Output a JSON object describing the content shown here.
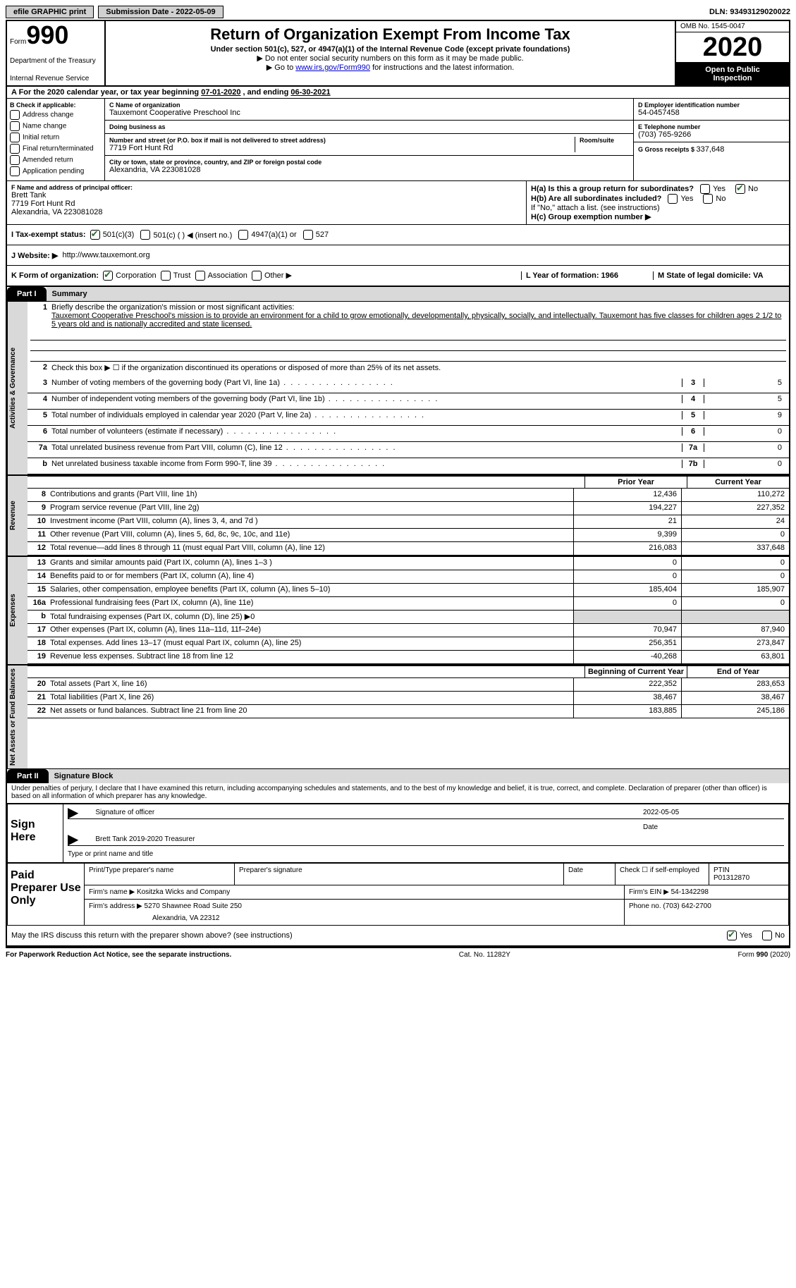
{
  "top": {
    "efile": "efile GRAPHIC print",
    "submission_label": "Submission Date - ",
    "submission_date": "2022-05-09",
    "dln_label": "DLN: ",
    "dln": "93493129020022"
  },
  "header": {
    "form_word": "Form",
    "form_number": "990",
    "title": "Return of Organization Exempt From Income Tax",
    "subtitle": "Under section 501(c), 527, or 4947(a)(1) of the Internal Revenue Code (except private foundations)",
    "instr1": "Do not enter social security numbers on this form as it may be made public.",
    "instr2_pre": "Go to ",
    "instr2_link": "www.irs.gov/Form990",
    "instr2_post": " for instructions and the latest information.",
    "dept1": "Department of the Treasury",
    "dept2": "Internal Revenue Service",
    "omb": "OMB No. 1545-0047",
    "year": "2020",
    "inspect1": "Open to Public",
    "inspect2": "Inspection"
  },
  "lineA": {
    "pre": "A For the 2020 calendar year, or tax year beginning ",
    "begin": "07-01-2020",
    "mid": " , and ending ",
    "end": "06-30-2021"
  },
  "secB": {
    "hdr": "B Check if applicable:",
    "opts": [
      "Address change",
      "Name change",
      "Initial return",
      "Final return/terminated",
      "Amended return",
      "Application pending"
    ]
  },
  "secC": {
    "name_hdr": "C Name of organization",
    "name": "Tauxemont Cooperative Preschool Inc",
    "dba_hdr": "Doing business as",
    "addr_hdr": "Number and street (or P.O. box if mail is not delivered to street address)",
    "room_hdr": "Room/suite",
    "addr": "7719 Fort Hunt Rd",
    "city_hdr": "City or town, state or province, country, and ZIP or foreign postal code",
    "city": "Alexandria, VA  223081028"
  },
  "secDE": {
    "d_hdr": "D Employer identification number",
    "ein": "54-0457458",
    "e_hdr": "E Telephone number",
    "phone": "(703) 765-9266",
    "g_hdr": "G Gross receipts $ ",
    "g_val": "337,648"
  },
  "secF": {
    "hdr": "F Name and address of principal officer:",
    "name": "Brett Tank",
    "addr1": "7719 Fort Hunt Rd",
    "addr2": "Alexandria, VA  223081028"
  },
  "secH": {
    "a_label": "H(a)  Is this a group return for subordinates?",
    "b_label": "H(b)  Are all subordinates included?",
    "b_note": "If \"No,\" attach a list. (see instructions)",
    "c_label": "H(c)  Group exemption number ▶",
    "yes": "Yes",
    "no": "No"
  },
  "secI": {
    "label": "I  Tax-exempt status:",
    "o1": "501(c)(3)",
    "o2": "501(c) (   ) ◀ (insert no.)",
    "o3": "4947(a)(1) or",
    "o4": "527"
  },
  "secJ": {
    "label": "J  Website: ▶",
    "url": "http://www.tauxemont.org"
  },
  "secK": {
    "label": "K Form of organization:",
    "o1": "Corporation",
    "o2": "Trust",
    "o3": "Association",
    "o4": "Other ▶"
  },
  "secLM": {
    "l": "L Year of formation: 1966",
    "m": "M State of legal domicile: VA"
  },
  "part1": {
    "tab": "Part I",
    "title": "Summary",
    "q1_label": "Briefly describe the organization's mission or most significant activities:",
    "mission": "Tauxemont Cooperative Preschool's mission is to provide an environment for a child to grow emotionally, developmentally, physically, socially, and intellectually. Tauxemont has five classes for children ages 2 1/2 to 5 years old and is nationally accredited and state licensed.",
    "q2": "Check this box ▶ ☐  if the organization discontinued its operations or disposed of more than 25% of its net assets.",
    "rows": [
      {
        "n": "3",
        "t": "Number of voting members of the governing body (Part VI, line 1a)",
        "box": "3",
        "v": "5"
      },
      {
        "n": "4",
        "t": "Number of independent voting members of the governing body (Part VI, line 1b)",
        "box": "4",
        "v": "5"
      },
      {
        "n": "5",
        "t": "Total number of individuals employed in calendar year 2020 (Part V, line 2a)",
        "box": "5",
        "v": "9"
      },
      {
        "n": "6",
        "t": "Total number of volunteers (estimate if necessary)",
        "box": "6",
        "v": "0"
      },
      {
        "n": "7a",
        "t": "Total unrelated business revenue from Part VIII, column (C), line 12",
        "box": "7a",
        "v": "0"
      },
      {
        "n": "b",
        "t": "Net unrelated business taxable income from Form 990-T, line 39",
        "box": "7b",
        "v": "0"
      }
    ],
    "col_prior": "Prior Year",
    "col_curr": "Current Year",
    "revenue_rows": [
      {
        "n": "8",
        "t": "Contributions and grants (Part VIII, line 1h)",
        "p": "12,436",
        "c": "110,272"
      },
      {
        "n": "9",
        "t": "Program service revenue (Part VIII, line 2g)",
        "p": "194,227",
        "c": "227,352"
      },
      {
        "n": "10",
        "t": "Investment income (Part VIII, column (A), lines 3, 4, and 7d )",
        "p": "21",
        "c": "24"
      },
      {
        "n": "11",
        "t": "Other revenue (Part VIII, column (A), lines 5, 6d, 8c, 9c, 10c, and 11e)",
        "p": "9,399",
        "c": "0"
      },
      {
        "n": "12",
        "t": "Total revenue—add lines 8 through 11 (must equal Part VIII, column (A), line 12)",
        "p": "216,083",
        "c": "337,648"
      }
    ],
    "expense_rows": [
      {
        "n": "13",
        "t": "Grants and similar amounts paid (Part IX, column (A), lines 1–3 )",
        "p": "0",
        "c": "0"
      },
      {
        "n": "14",
        "t": "Benefits paid to or for members (Part IX, column (A), line 4)",
        "p": "0",
        "c": "0"
      },
      {
        "n": "15",
        "t": "Salaries, other compensation, employee benefits (Part IX, column (A), lines 5–10)",
        "p": "185,404",
        "c": "185,907"
      },
      {
        "n": "16a",
        "t": "Professional fundraising fees (Part IX, column (A), line 11e)",
        "p": "0",
        "c": "0"
      },
      {
        "n": "b",
        "t": "Total fundraising expenses (Part IX, column (D), line 25) ▶0",
        "p": "shade",
        "c": "shade"
      },
      {
        "n": "17",
        "t": "Other expenses (Part IX, column (A), lines 11a–11d, 11f–24e)",
        "p": "70,947",
        "c": "87,940"
      },
      {
        "n": "18",
        "t": "Total expenses. Add lines 13–17 (must equal Part IX, column (A), line 25)",
        "p": "256,351",
        "c": "273,847"
      },
      {
        "n": "19",
        "t": "Revenue less expenses. Subtract line 18 from line 12",
        "p": "-40,268",
        "c": "63,801"
      }
    ],
    "col_begin": "Beginning of Current Year",
    "col_end": "End of Year",
    "net_rows": [
      {
        "n": "20",
        "t": "Total assets (Part X, line 16)",
        "p": "222,352",
        "c": "283,653"
      },
      {
        "n": "21",
        "t": "Total liabilities (Part X, line 26)",
        "p": "38,467",
        "c": "38,467"
      },
      {
        "n": "22",
        "t": "Net assets or fund balances. Subtract line 21 from line 20",
        "p": "183,885",
        "c": "245,186"
      }
    ],
    "vtabs": {
      "gov": "Activities & Governance",
      "rev": "Revenue",
      "exp": "Expenses",
      "net": "Net Assets or Fund Balances"
    }
  },
  "part2": {
    "tab": "Part II",
    "title": "Signature Block",
    "declaration": "Under penalties of perjury, I declare that I have examined this return, including accompanying schedules and statements, and to the best of my knowledge and belief, it is true, correct, and complete. Declaration of preparer (other than officer) is based on all information of which preparer has any knowledge.",
    "sign_here": "Sign Here",
    "sig_officer": "Signature of officer",
    "sig_date_label": "Date",
    "sig_date": "2022-05-05",
    "print_name": "Brett Tank 2019-2020 Treasurer",
    "print_label": "Type or print name and title",
    "paid_label": "Paid Preparer Use Only",
    "prep_name_hdr": "Print/Type preparer's name",
    "prep_sig_hdr": "Preparer's signature",
    "prep_date_hdr": "Date",
    "prep_check": "Check ☐ if self-employed",
    "ptin_hdr": "PTIN",
    "ptin": "P01312870",
    "firm_name_hdr": "Firm's name  ▶ ",
    "firm_name": "Kositzka Wicks and Company",
    "firm_ein_hdr": "Firm's EIN ▶ ",
    "firm_ein": "54-1342298",
    "firm_addr_hdr": "Firm's address ▶ ",
    "firm_addr1": "5270 Shawnee Road Suite 250",
    "firm_addr2": "Alexandria, VA  22312",
    "firm_phone_hdr": "Phone no. ",
    "firm_phone": "(703) 642-2700",
    "may_irs": "May the IRS discuss this return with the preparer shown above? (see instructions)"
  },
  "footer": {
    "left": "For Paperwork Reduction Act Notice, see the separate instructions.",
    "mid": "Cat. No. 11282Y",
    "right": "Form 990 (2020)"
  }
}
